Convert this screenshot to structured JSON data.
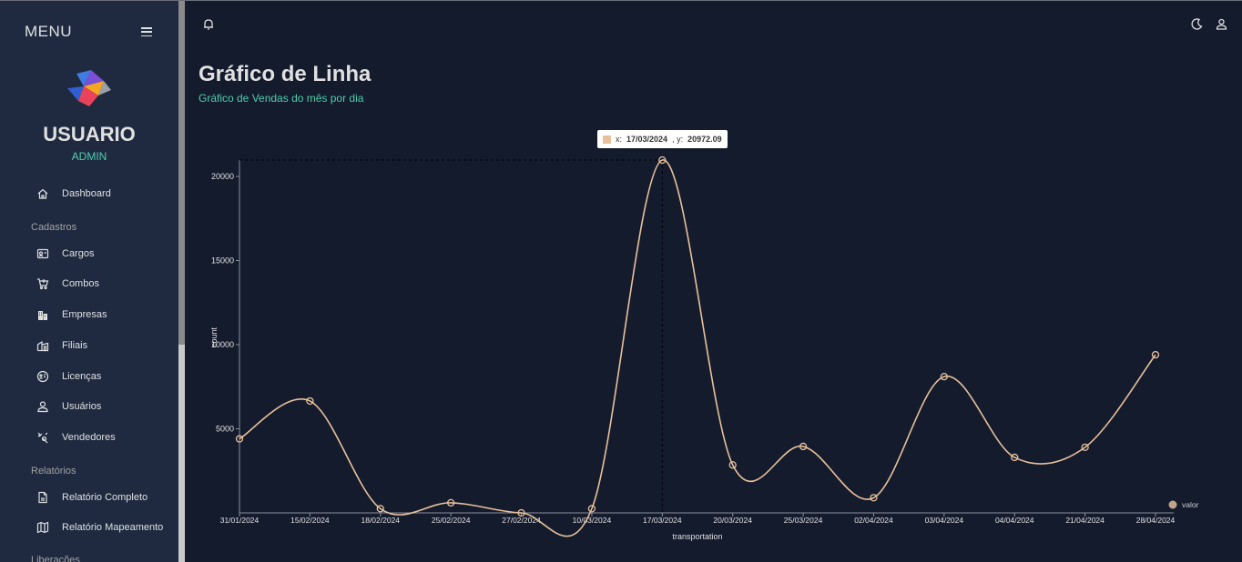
{
  "sidebar": {
    "menu_title": "MENU",
    "user_name": "USUARIO",
    "user_role": "ADMIN",
    "items": [
      {
        "label": "Dashboard",
        "icon": "home-icon"
      },
      {
        "label": "Cargos",
        "icon": "id-card-icon"
      },
      {
        "label": "Combos",
        "icon": "cart-icon"
      },
      {
        "label": "Empresas",
        "icon": "building-icon"
      },
      {
        "label": "Filiais",
        "icon": "branch-icon"
      },
      {
        "label": "Licenças",
        "icon": "license-icon"
      },
      {
        "label": "Usuários",
        "icon": "user-icon"
      },
      {
        "label": "Vendedores",
        "icon": "seller-icon"
      },
      {
        "label": "Relatório Completo",
        "icon": "document-icon"
      },
      {
        "label": "Relatório Mapeamento",
        "icon": "map-icon"
      }
    ],
    "sections": {
      "cadastros": "Cadastros",
      "relatorios": "Relatórios",
      "liberacoes": "Liberações"
    }
  },
  "header": {
    "title": "Gráfico de Linha",
    "subtitle": "Gráfico de Vendas do mês por dia"
  },
  "tooltip": {
    "x_prefix": "x:",
    "x_value": "17/03/2024",
    "y_prefix": ", y:",
    "y_value": "20972.09"
  },
  "colors": {
    "background": "#141b2d",
    "sidebar": "#1f2a40",
    "accent": "#4cceac",
    "line": "#e8c19a"
  },
  "chart_data": {
    "type": "line",
    "xlabel": "transportation",
    "ylabel": "count",
    "ylim": [
      0,
      21000
    ],
    "yticks": [
      5000,
      10000,
      15000,
      20000
    ],
    "x": [
      "31/01/2024",
      "15/02/2024",
      "18/02/2024",
      "25/02/2024",
      "27/02/2024",
      "10/03/2024",
      "17/03/2024",
      "20/03/2024",
      "25/03/2024",
      "02/04/2024",
      "03/04/2024",
      "04/04/2024",
      "21/04/2024",
      "28/04/2024"
    ],
    "series": [
      {
        "name": "valor",
        "values": [
          4400,
          6650,
          250,
          600,
          0,
          250,
          20972.09,
          2850,
          3950,
          900,
          8100,
          3300,
          3900,
          9400
        ]
      }
    ],
    "legend": "bottom-right",
    "grid": false
  }
}
